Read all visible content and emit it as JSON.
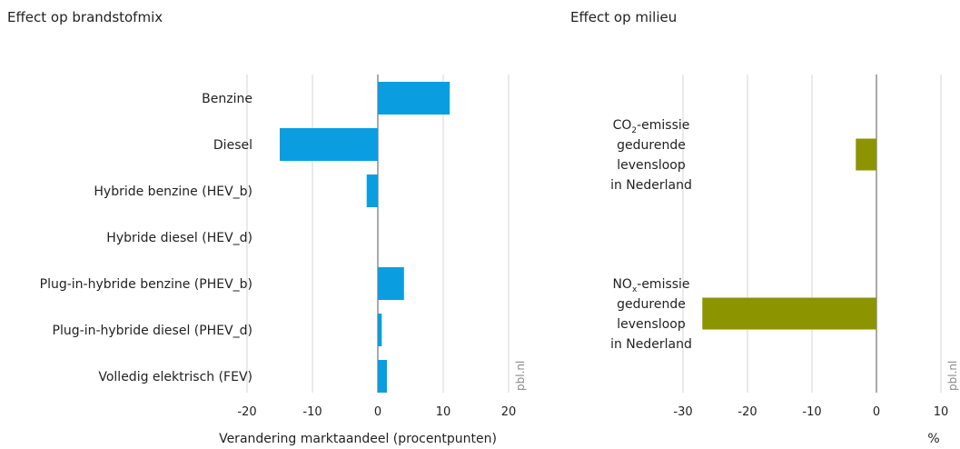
{
  "source_label": "pbl.nl",
  "chart_data": [
    {
      "type": "bar",
      "orientation": "horizontal",
      "title": "Effect op brandstofmix",
      "xlabel": "Verandering marktaandeel (procentpunten)",
      "ylabel": "",
      "xlim": [
        -20,
        20
      ],
      "xticks": [
        -20,
        -10,
        0,
        10,
        20
      ],
      "grid": true,
      "color": "#0a9ee0",
      "categories": [
        "Benzine",
        "Diesel",
        "Hybride benzine (HEV_b)",
        "Hybride diesel (HEV_d)",
        "Plug-in-hybride benzine (PHEV_b)",
        "Plug-in-hybride diesel (PHEV_d)",
        "Volledig elektrisch (FEV)"
      ],
      "values": [
        11,
        -15,
        -1.7,
        0,
        4,
        0.6,
        1.4
      ]
    },
    {
      "type": "bar",
      "orientation": "horizontal",
      "title": "Effect op milieu",
      "xlabel": "%",
      "ylabel": "",
      "xlim": [
        -30,
        10
      ],
      "xticks": [
        -30,
        -20,
        -10,
        0,
        10
      ],
      "grid": true,
      "color": "#8c9400",
      "categories": [
        {
          "pre": "CO",
          "sub": "2",
          "post": "-emissie",
          "rest": [
            "gedurende",
            "levensloop",
            "in Nederland"
          ]
        },
        {
          "pre": "NO",
          "sub": "x",
          "post": "-emissie",
          "rest": [
            "gedurende",
            "levensloop",
            "in Nederland"
          ]
        }
      ],
      "values": [
        -3.2,
        -27
      ]
    }
  ]
}
